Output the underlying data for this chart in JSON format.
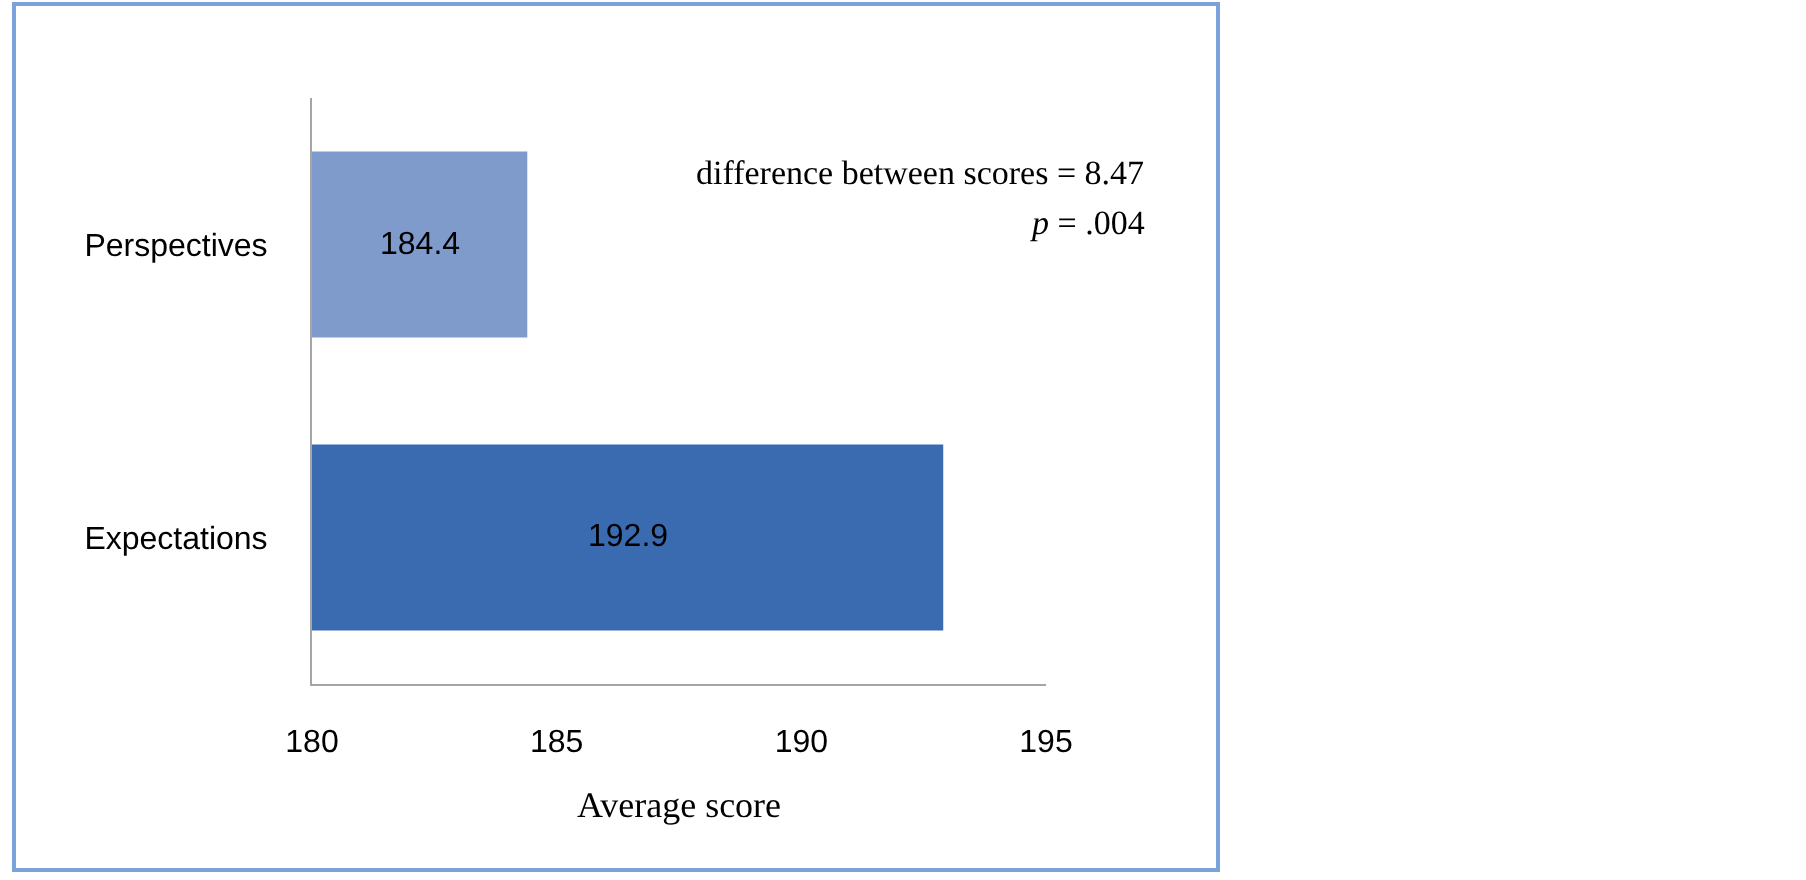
{
  "chart_data": {
    "type": "bar",
    "orientation": "horizontal",
    "categories": [
      "Perspectives",
      "Expectations"
    ],
    "values": [
      184.4,
      192.9
    ],
    "colors": [
      "#7e9bcc",
      "#3a6bb0"
    ],
    "xlim": [
      180,
      195
    ],
    "xticks": [
      180,
      185,
      190,
      195
    ],
    "xlabel": "Average score",
    "data_labels": true,
    "annotations": [
      "difference between scores = 8.47",
      "p = .004"
    ]
  }
}
